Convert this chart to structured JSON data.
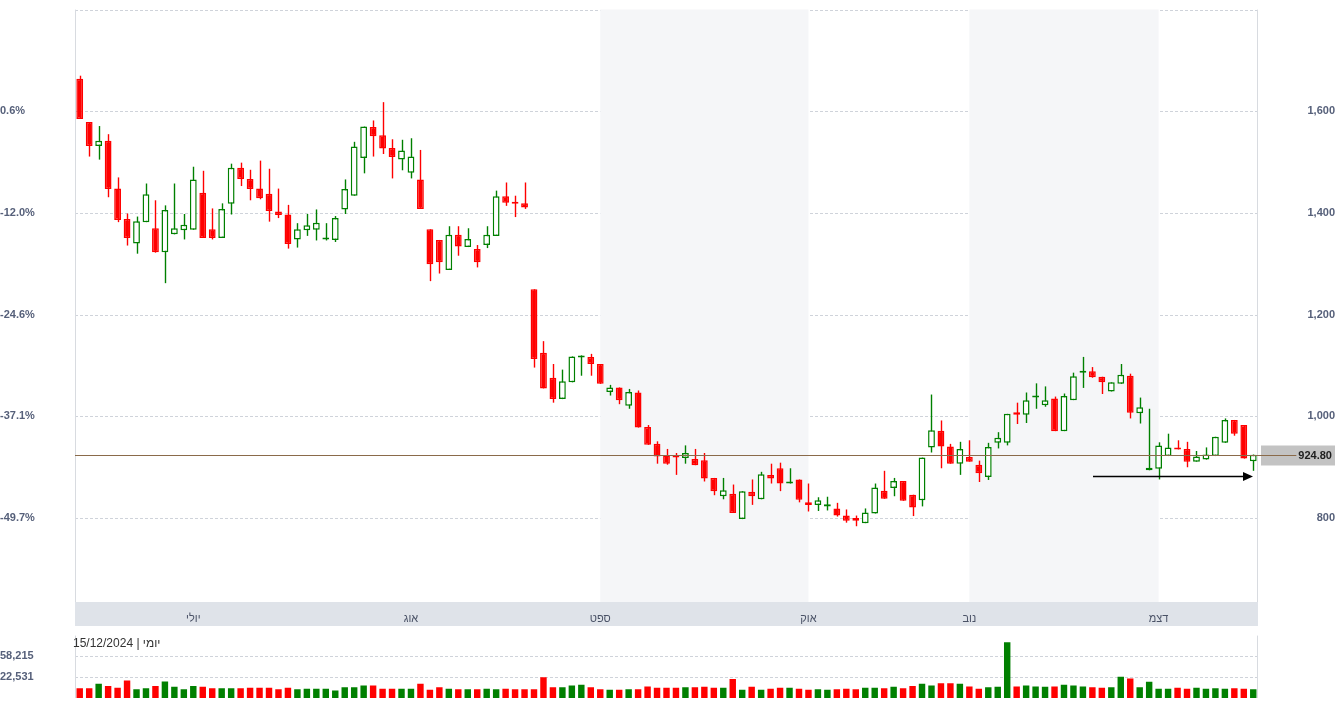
{
  "chart_data": [
    {
      "type": "candlestick",
      "categories": [
        null,
        null,
        null,
        null,
        null,
        null,
        null,
        null,
        null,
        null,
        null,
        null,
        "יולי",
        null,
        null,
        null,
        null,
        null,
        null,
        null,
        null,
        null,
        null,
        null,
        null,
        null,
        null,
        null,
        null,
        null,
        null,
        null,
        null,
        null,
        null,
        "אוג",
        null,
        null,
        null,
        null,
        null,
        null,
        null,
        null,
        null,
        null,
        null,
        null,
        null,
        null,
        null,
        null,
        null,
        null,
        null,
        "ספט",
        null,
        null,
        null,
        null,
        null,
        null,
        null,
        null,
        null,
        null,
        null,
        null,
        null,
        null,
        null,
        null,
        null,
        null,
        null,
        null,
        null,
        "אוק",
        null,
        null,
        null,
        null,
        null,
        null,
        null,
        null,
        null,
        null,
        null,
        null,
        null,
        null,
        null,
        null,
        "נוב",
        null,
        null,
        null,
        null,
        null,
        null,
        null,
        null,
        null,
        null,
        null,
        null,
        null,
        null,
        null,
        null,
        null,
        null,
        null,
        "דצמ",
        null,
        null,
        null,
        null,
        null,
        null,
        null,
        null,
        null,
        null
      ],
      "series": [
        {
          "axis": "y2",
          "ohlc": [
            [
              1664,
              1670,
              1585,
              1585
            ],
            [
              1579,
              1579,
              1511,
              1532
            ],
            [
              1532,
              1571,
              1505,
              1542
            ],
            [
              1542,
              1555,
              1431,
              1447
            ],
            [
              1448,
              1470,
              1382,
              1386
            ],
            [
              1388,
              1399,
              1336,
              1351
            ],
            [
              1340,
              1393,
              1320,
              1384
            ],
            [
              1382,
              1458,
              1382,
              1437
            ],
            [
              1370,
              1425,
              1322,
              1323
            ],
            [
              1323,
              1415,
              1262,
              1406
            ],
            [
              1358,
              1458,
              1358,
              1370
            ],
            [
              1366,
              1398,
              1348,
              1377
            ],
            [
              1367,
              1491,
              1367,
              1466
            ],
            [
              1440,
              1483,
              1351,
              1351
            ],
            [
              1368,
              1409,
              1348,
              1351
            ],
            [
              1351,
              1419,
              1351,
              1408
            ],
            [
              1418,
              1497,
              1397,
              1489
            ],
            [
              1489,
              1499,
              1453,
              1467
            ],
            [
              1467,
              1485,
              1425,
              1447
            ],
            [
              1448,
              1503,
              1427,
              1429
            ],
            [
              1438,
              1487,
              1383,
              1404
            ],
            [
              1403,
              1448,
              1390,
              1396
            ],
            [
              1397,
              1416,
              1330,
              1339
            ],
            [
              1348,
              1380,
              1332,
              1368
            ],
            [
              1366,
              1398,
              1355,
              1376
            ],
            [
              1367,
              1407,
              1346,
              1381
            ],
            [
              1348,
              1380,
              1346,
              1350
            ],
            [
              1347,
              1394,
              1343,
              1390
            ],
            [
              1407,
              1466,
              1398,
              1447
            ],
            [
              1434,
              1540,
              1434,
              1531
            ],
            [
              1508,
              1570,
              1478,
              1570
            ],
            [
              1569,
              1582,
              1511,
              1551
            ],
            [
              1553,
              1618,
              1516,
              1527
            ],
            [
              1528,
              1545,
              1468,
              1510
            ],
            [
              1505,
              1544,
              1484,
              1523
            ],
            [
              1479,
              1547,
              1468,
              1511
            ],
            [
              1466,
              1524,
              1408,
              1408
            ],
            [
              1368,
              1368,
              1266,
              1299
            ],
            [
              1347,
              1347,
              1281,
              1303
            ],
            [
              1288,
              1374,
              1288,
              1357
            ],
            [
              1357,
              1374,
              1316,
              1334
            ],
            [
              1333,
              1370,
              1333,
              1349
            ],
            [
              1329,
              1337,
              1293,
              1303
            ],
            [
              1337,
              1374,
              1331,
              1357
            ],
            [
              1355,
              1444,
              1355,
              1433
            ],
            [
              1433,
              1460,
              1414,
              1420
            ],
            [
              1420,
              1434,
              1392,
              1418
            ],
            [
              1419,
              1460,
              1408,
              1411
            ],
            [
              1250,
              1250,
              1096,
              1113
            ],
            [
              1125,
              1148,
              1055,
              1055
            ],
            [
              1076,
              1103,
              1027,
              1034
            ],
            [
              1034,
              1092,
              1034,
              1069
            ],
            [
              1067,
              1118,
              1067,
              1118
            ],
            [
              1116,
              1120,
              1080,
              1118
            ],
            [
              1117,
              1123,
              1080,
              1103
            ],
            [
              1103,
              1103,
              1064,
              1064
            ],
            [
              1048,
              1062,
              1041,
              1057
            ],
            [
              1057,
              1057,
              1024,
              1032
            ],
            [
              1021,
              1054,
              1015,
              1048
            ],
            [
              1047,
              1051,
              978,
              978
            ],
            [
              979,
              983,
              944,
              944
            ],
            [
              946,
              951,
              907,
              921
            ],
            [
              923,
              936,
              905,
              907
            ],
            [
              921,
              928,
              885,
              919
            ],
            [
              918,
              943,
              907,
              928
            ],
            [
              916,
              936,
              904,
              904
            ],
            [
              914,
              928,
              872,
              878
            ],
            [
              879,
              879,
              845,
              853
            ],
            [
              843,
              879,
              837,
              855
            ],
            [
              848,
              866,
              810,
              810
            ],
            [
              798,
              853,
              798,
              853
            ],
            [
              852,
              876,
              826,
              843
            ],
            [
              837,
              891,
              837,
              886
            ],
            [
              885,
              907,
              868,
              878
            ],
            [
              898,
              909,
              853,
              868
            ],
            [
              868,
              898,
              868,
              869
            ],
            [
              876,
              876,
              831,
              836
            ],
            [
              831,
              868,
              813,
              826
            ],
            [
              826,
              841,
              814,
              835
            ],
            [
              823,
              842,
              815,
              827
            ],
            [
              819,
              830,
              803,
              805
            ],
            [
              805,
              817,
              791,
              795
            ],
            [
              800,
              805,
              784,
              795
            ],
            [
              790,
              819,
              790,
              811
            ],
            [
              809,
              868,
              809,
              860
            ],
            [
              854,
              893,
              838,
              838
            ],
            [
              859,
              879,
              843,
              873
            ],
            [
              873,
              873,
              834,
              834
            ],
            [
              846,
              846,
              804,
              821
            ],
            [
              835,
              919,
              823,
              919
            ],
            [
              939,
              1043,
              929,
              973
            ],
            [
              972,
              992,
              898,
              941
            ],
            [
              941,
              946,
              907,
              907
            ],
            [
              907,
              950,
              885,
              936
            ],
            [
              920,
              953,
              911,
              911
            ],
            [
              905,
              913,
              871,
              888
            ],
            [
              881,
              948,
              875,
              940
            ],
            [
              948,
              969,
              937,
              958
            ],
            [
              948,
              1005,
              943,
              1005
            ],
            [
              1008,
              1027,
              985,
              1003
            ],
            [
              1003,
              1047,
              987,
              1032
            ],
            [
              1037,
              1065,
              1015,
              1040
            ],
            [
              1022,
              1059,
              1019,
              1032
            ],
            [
              1035,
              1039,
              971,
              971
            ],
            [
              971,
              1045,
              971,
              1040
            ],
            [
              1032,
              1086,
              1032,
              1079
            ],
            [
              1086,
              1117,
              1056,
              1088
            ],
            [
              1089,
              1097,
              1076,
              1077
            ],
            [
              1078,
              1078,
              1044,
              1067
            ],
            [
              1049,
              1067,
              1049,
              1067
            ],
            [
              1064,
              1103,
              1064,
              1082
            ],
            [
              1080,
              1084,
              996,
              1007
            ],
            [
              1006,
              1037,
              986,
              1018
            ],
            [
              894,
              1015,
              894,
              899
            ],
            [
              897,
              949,
              876,
              943
            ],
            [
              922,
              966,
              922,
              939
            ],
            [
              938,
              953,
              935,
              935
            ],
            [
              936,
              950,
              900,
              911
            ],
            [
              911,
              932,
              911,
              921
            ],
            [
              915,
              939,
              915,
              925
            ],
            [
              922,
              960,
              922,
              960
            ],
            [
              948,
              996,
              948,
              993
            ],
            [
              993,
              993,
              962,
              966
            ],
            [
              983,
              983,
              917,
              917
            ],
            [
              912,
              925,
              893,
              924.8
            ]
          ],
          "colors": [
            "#ff0000",
            "#ff0000",
            "#008000",
            "#ff0000",
            "#ff0000",
            "#ff0000",
            "#008000",
            "#008000",
            "#ff0000",
            "#008000",
            "#008000",
            "#008000",
            "#008000",
            "#ff0000",
            "#ff0000",
            "#008000",
            "#008000",
            "#ff0000",
            "#ff0000",
            "#ff0000",
            "#ff0000",
            "#ff0000",
            "#ff0000",
            "#008000",
            "#008000",
            "#008000",
            "#008000",
            "#008000",
            "#008000",
            "#008000",
            "#008000",
            "#ff0000",
            "#ff0000",
            "#ff0000",
            "#008000",
            "#008000",
            "#ff0000",
            "#ff0000",
            "#ff0000",
            "#008000",
            "#ff0000",
            "#008000",
            "#ff0000",
            "#008000",
            "#008000",
            "#ff0000",
            "#ff0000",
            "#ff0000",
            "#ff0000",
            "#ff0000",
            "#ff0000",
            "#008000",
            "#008000",
            "#008000",
            "#ff0000",
            "#ff0000",
            "#008000",
            "#ff0000",
            "#008000",
            "#ff0000",
            "#ff0000",
            "#ff0000",
            "#ff0000",
            "#ff0000",
            "#008000",
            "#ff0000",
            "#ff0000",
            "#ff0000",
            "#008000",
            "#ff0000",
            "#008000",
            "#ff0000",
            "#008000",
            "#ff0000",
            "#ff0000",
            "#008000",
            "#ff0000",
            "#ff0000",
            "#008000",
            "#008000",
            "#ff0000",
            "#ff0000",
            "#ff0000",
            "#008000",
            "#008000",
            "#ff0000",
            "#008000",
            "#ff0000",
            "#ff0000",
            "#008000",
            "#008000",
            "#ff0000",
            "#ff0000",
            "#008000",
            "#ff0000",
            "#ff0000",
            "#008000",
            "#008000",
            "#008000",
            "#ff0000",
            "#008000",
            "#008000",
            "#008000",
            "#ff0000",
            "#008000",
            "#008000",
            "#008000",
            "#ff0000",
            "#ff0000",
            "#008000",
            "#008000",
            "#ff0000",
            "#008000",
            "#008000",
            "#008000",
            "#008000",
            "#ff0000",
            "#ff0000",
            "#008000",
            "#008000",
            "#008000",
            "#008000",
            "#ff0000",
            "#ff0000",
            "#008000"
          ]
        }
      ],
      "ylim": [
        -60.1,
        13.2
      ],
      "yticks": [
        {
          "value": 0.6,
          "label": "0.6%"
        },
        {
          "value": -12,
          "label": "-12.0%"
        },
        {
          "value": -24.6,
          "label": "-24.6%"
        },
        {
          "value": -37.1,
          "label": "-37.1%"
        },
        {
          "value": -49.7,
          "label": "-49.7%"
        }
      ],
      "y2lim": [
        635,
        1800
      ],
      "y2ticks": [
        800,
        {
          "value": 1000,
          "label": "1,000"
        },
        {
          "value": 1200,
          "label": "1,200"
        },
        {
          "value": 1400,
          "label": "1,400"
        },
        {
          "value": 1600,
          "label": "1,600"
        },
        {
          "value": 1800,
          "label": null
        }
      ],
      "grid": "y",
      "ref_lines": [
        {
          "axis": "y2",
          "value": 924.8,
          "label": "924.80",
          "color": "#8a6a4a"
        }
      ],
      "bands": [
        {
          "axis": "x",
          "from": "ספט",
          "to": "אוק",
          "color": "#f5f6f8"
        },
        {
          "axis": "x",
          "from": "נוב",
          "to": "דצמ",
          "color": "#f5f6f8"
        }
      ]
    },
    {
      "type": "bar",
      "categories": [
        null,
        null,
        null,
        null,
        null,
        null,
        null,
        null,
        null,
        null,
        null,
        null,
        null,
        null,
        null,
        null,
        null,
        null,
        null,
        null,
        null,
        null,
        null,
        null,
        null,
        null,
        null,
        null,
        null,
        null,
        null,
        null,
        null,
        null,
        null,
        null,
        null,
        null,
        null,
        null,
        null,
        null,
        null,
        null,
        null,
        null,
        null,
        null,
        null,
        null,
        null,
        null,
        null,
        null,
        null,
        null,
        null,
        null,
        null,
        null,
        null,
        null,
        null,
        null,
        null,
        null,
        null,
        null,
        null,
        null,
        null,
        null,
        null,
        null,
        null,
        null,
        null,
        null,
        null,
        null,
        null,
        null,
        null,
        null,
        null,
        null,
        null,
        null,
        null,
        null,
        null,
        null,
        null,
        null,
        null,
        null,
        null,
        null,
        null,
        null,
        null,
        null,
        null,
        null,
        null,
        null,
        null,
        null,
        null,
        null,
        null,
        null,
        null,
        null,
        null,
        null,
        null,
        null,
        null,
        null,
        null,
        null,
        null,
        null,
        null
      ],
      "values": [
        13800,
        13800,
        16900,
        15300,
        14100,
        19600,
        13300,
        13800,
        15300,
        18700,
        14800,
        13300,
        15300,
        14800,
        13800,
        13800,
        13800,
        13800,
        14100,
        14100,
        14100,
        13300,
        14100,
        13300,
        13600,
        13600,
        13600,
        12600,
        14400,
        14400,
        15600,
        15600,
        13600,
        13600,
        13600,
        13600,
        16900,
        13000,
        14400,
        13600,
        13300,
        13300,
        13300,
        13600,
        13300,
        13600,
        13300,
        13300,
        13300,
        22500,
        14400,
        14400,
        15600,
        16200,
        14400,
        13300,
        13000,
        13000,
        13300,
        13300,
        15000,
        14100,
        14100,
        14100,
        14400,
        14400,
        14800,
        14100,
        14100,
        20900,
        13000,
        14800,
        13000,
        13600,
        14100,
        14100,
        13600,
        13000,
        13300,
        13000,
        13300,
        13600,
        13300,
        14100,
        14100,
        13800,
        14800,
        13800,
        15300,
        16900,
        15600,
        17200,
        17200,
        16900,
        15000,
        13600,
        14400,
        14800,
        106000,
        15000,
        15600,
        15000,
        14800,
        15000,
        16200,
        15600,
        15000,
        14400,
        14100,
        14400,
        23100,
        21300,
        14400,
        18400,
        13600,
        13600,
        14100,
        13600,
        14100,
        13600,
        13800,
        13600,
        13800,
        13600,
        13300
      ],
      "colors": [
        "#ff0000",
        "#ff0000",
        "#008000",
        "#ff0000",
        "#ff0000",
        "#ff0000",
        "#008000",
        "#008000",
        "#ff0000",
        "#008000",
        "#008000",
        "#008000",
        "#008000",
        "#ff0000",
        "#ff0000",
        "#008000",
        "#008000",
        "#ff0000",
        "#ff0000",
        "#ff0000",
        "#ff0000",
        "#ff0000",
        "#ff0000",
        "#008000",
        "#008000",
        "#008000",
        "#008000",
        "#008000",
        "#008000",
        "#008000",
        "#008000",
        "#ff0000",
        "#ff0000",
        "#ff0000",
        "#008000",
        "#008000",
        "#ff0000",
        "#ff0000",
        "#ff0000",
        "#008000",
        "#ff0000",
        "#008000",
        "#ff0000",
        "#008000",
        "#008000",
        "#ff0000",
        "#ff0000",
        "#ff0000",
        "#ff0000",
        "#ff0000",
        "#ff0000",
        "#008000",
        "#008000",
        "#008000",
        "#ff0000",
        "#ff0000",
        "#008000",
        "#ff0000",
        "#008000",
        "#ff0000",
        "#ff0000",
        "#ff0000",
        "#ff0000",
        "#ff0000",
        "#008000",
        "#ff0000",
        "#ff0000",
        "#ff0000",
        "#008000",
        "#ff0000",
        "#008000",
        "#ff0000",
        "#008000",
        "#ff0000",
        "#ff0000",
        "#008000",
        "#ff0000",
        "#ff0000",
        "#008000",
        "#008000",
        "#ff0000",
        "#ff0000",
        "#ff0000",
        "#008000",
        "#008000",
        "#ff0000",
        "#008000",
        "#ff0000",
        "#ff0000",
        "#008000",
        "#008000",
        "#ff0000",
        "#ff0000",
        "#008000",
        "#ff0000",
        "#ff0000",
        "#008000",
        "#008000",
        "#008000",
        "#ff0000",
        "#008000",
        "#008000",
        "#008000",
        "#ff0000",
        "#008000",
        "#008000",
        "#008000",
        "#ff0000",
        "#ff0000",
        "#008000",
        "#008000",
        "#ff0000",
        "#008000",
        "#008000",
        "#008000",
        "#008000",
        "#ff0000",
        "#ff0000",
        "#008000",
        "#008000",
        "#008000",
        "#008000",
        "#ff0000",
        "#ff0000",
        "#008000"
      ],
      "log": "y",
      "ylim": [
        9000,
        142000
      ],
      "yticks": [
        {
          "value": 22531,
          "label": "22,531"
        },
        {
          "value": 58215,
          "label": "58,215"
        }
      ],
      "grid": "y",
      "tick_labels": "y",
      "annotations": [
        "יומי | 15/12/2024"
      ]
    }
  ]
}
